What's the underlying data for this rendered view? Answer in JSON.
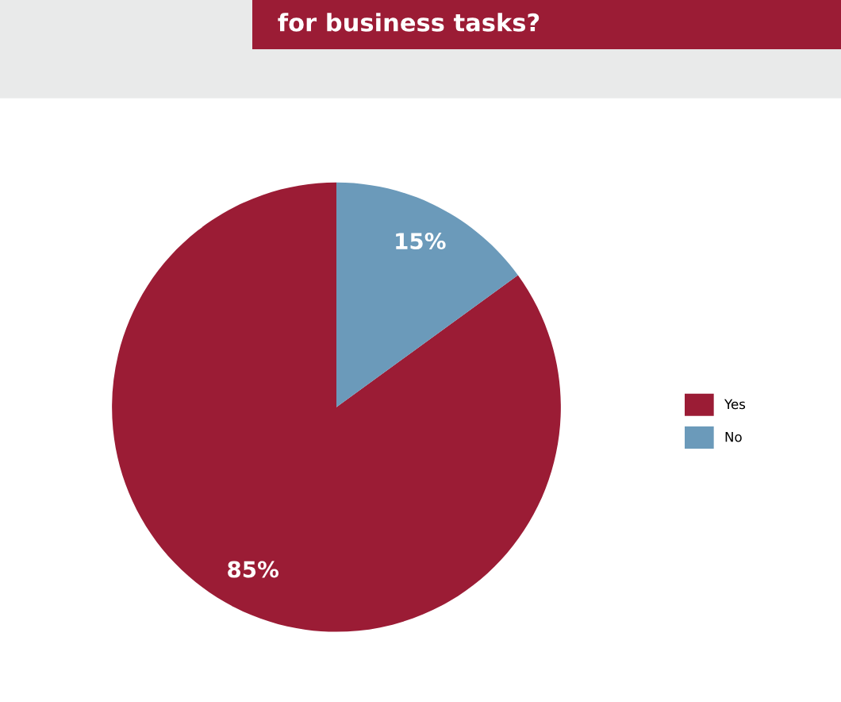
{
  "chart_data": {
    "type": "pie",
    "title": "for business tasks?",
    "categories": [
      "Yes",
      "No"
    ],
    "values": [
      85,
      15
    ],
    "colors": [
      "#9b1c35",
      "#6b9aba"
    ],
    "value_labels": [
      "85%",
      "15%"
    ],
    "legend": "right"
  }
}
